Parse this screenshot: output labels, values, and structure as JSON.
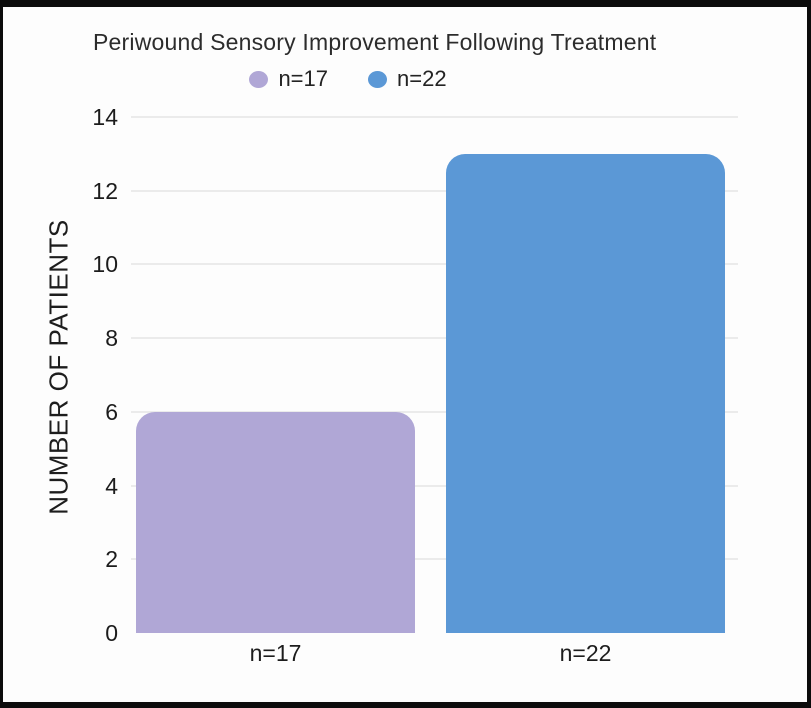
{
  "frame": {
    "border_color": "#0c0c0c",
    "background": "#fdfdfd"
  },
  "chart_data": {
    "type": "bar",
    "title": "Periwound Sensory Improvement Following Treatment",
    "categories": [
      "n=17",
      "n=22"
    ],
    "values": [
      6,
      13
    ],
    "bar_colors": [
      "#b0a7d6",
      "#5b98d6"
    ],
    "xlabel": "",
    "ylabel": "NUMBER OF PATIENTS",
    "ylim": [
      0,
      14
    ],
    "ytick_step": 2,
    "grid": true,
    "gridline_color": "#ebebeb",
    "text_color": "#232323",
    "legend": {
      "position": "top",
      "entries": [
        {
          "label": "n=17",
          "color": "#b0a7d6"
        },
        {
          "label": "n=22",
          "color": "#5b98d6"
        }
      ]
    }
  }
}
